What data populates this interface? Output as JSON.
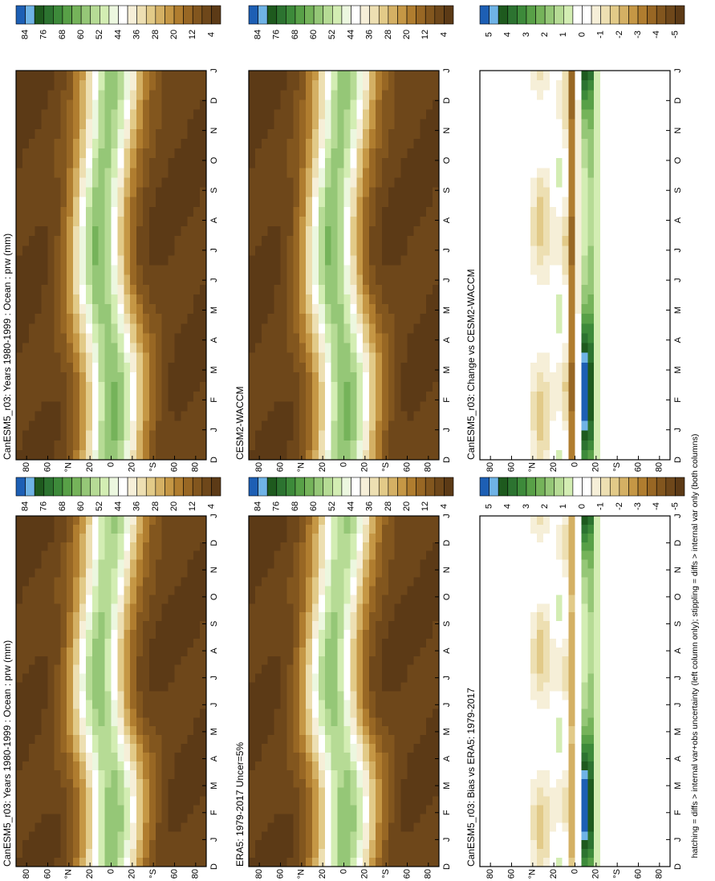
{
  "panels": [
    {
      "title": "CanESM5_r03: Years 1980-1999 : Ocean : prw (mm)",
      "colorbar": "mean"
    },
    {
      "title": "CanESM5_r03: Years 1980-1999 : Ocean : prw (mm)",
      "colorbar": "mean"
    },
    {
      "title": "ERA5: 1979-2017 Uncer=5%",
      "colorbar": "mean"
    },
    {
      "title": "CESM2-WACCM",
      "colorbar": "mean"
    },
    {
      "title": "CanESM5_r03: Bias vs ERA5: 1979-2017",
      "colorbar": "diff"
    },
    {
      "title": "CanESM5_r03: Change vs CESM2-WACCM",
      "colorbar": "diff"
    }
  ],
  "x_axis": {
    "labels": [
      "D",
      "J",
      "F",
      "M",
      "A",
      "M",
      "J",
      "J",
      "A",
      "S",
      "O",
      "N",
      "D",
      "J"
    ]
  },
  "y_axis": {
    "labels": [
      "80",
      "60",
      "°N",
      "20",
      "0",
      "20",
      "°S",
      "60",
      "80"
    ]
  },
  "colorbars": {
    "mean": {
      "labels": [
        "84",
        "76",
        "68",
        "60",
        "52",
        "44",
        "36",
        "28",
        "20",
        "12",
        "4"
      ],
      "colors": [
        "#1d5fb4",
        "#6fb3e6",
        "#1e5a1e",
        "#2c7330",
        "#3d8a3a",
        "#58a047",
        "#75b35a",
        "#95c777",
        "#b6db95",
        "#d3edb3",
        "#ecf7df",
        "#ffffff",
        "#f6efd8",
        "#eddfb2",
        "#e2ca88",
        "#d4b064",
        "#c59745",
        "#b07d2f",
        "#986724",
        "#82561e",
        "#6e471a",
        "#5c3a16"
      ]
    },
    "diff": {
      "labels": [
        "5",
        "4",
        "3",
        "2",
        "1",
        "0",
        "-1",
        "-2",
        "-3",
        "-4",
        "-5"
      ],
      "colors": [
        "#1d5fb4",
        "#6fb3e6",
        "#1e5a1e",
        "#2c7330",
        "#3d8a3a",
        "#58a047",
        "#75b35a",
        "#95c777",
        "#b6db95",
        "#d3edb3",
        "#ffffff",
        "#ffffff",
        "#f6efd8",
        "#eddfb2",
        "#e2ca88",
        "#d4b064",
        "#c59745",
        "#b07d2f",
        "#986724",
        "#82561e",
        "#6e471a",
        "#5c3a16"
      ]
    }
  },
  "footnote": "hatching = diffs > internal var+obs uncertainty (left column only); stippling = diffs > internal var only (both columns)"
}
